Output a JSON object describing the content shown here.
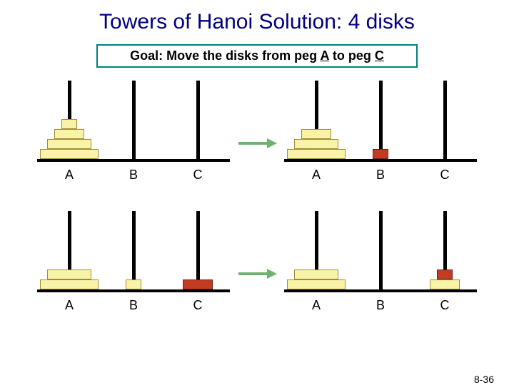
{
  "title": "Towers of Hanoi Solution: 4 disks",
  "goal_prefix": "Goal: Move the disks from peg ",
  "goal_mid": " to peg ",
  "goal_peg_a": "A",
  "goal_peg_c": "C",
  "footer": "8-36",
  "colors": {
    "title": "#000080",
    "goal_border": "#008080",
    "pole": "#000000",
    "base": "#000000",
    "disk_yellow_fill": "#f9f3a8",
    "disk_yellow_border": "#a08a3a",
    "disk_red_fill": "#c23b22",
    "disk_red_border": "#6e1f12",
    "arrow": "#6db36d"
  },
  "disk_widths": {
    "1": 22,
    "2": 42,
    "3": 62,
    "4": 82
  },
  "peg_labels": [
    "A",
    "B",
    "C"
  ],
  "rows": [
    {
      "left": {
        "A": [
          {
            "size": 1,
            "color": "yellow"
          },
          {
            "size": 2,
            "color": "yellow"
          },
          {
            "size": 3,
            "color": "yellow"
          },
          {
            "size": 4,
            "color": "yellow"
          }
        ],
        "B": [],
        "C": []
      },
      "right": {
        "A": [
          {
            "size": 2,
            "color": "yellow"
          },
          {
            "size": 3,
            "color": "yellow"
          },
          {
            "size": 4,
            "color": "yellow"
          }
        ],
        "B": [
          {
            "size": 1,
            "color": "red"
          }
        ],
        "C": []
      }
    },
    {
      "left": {
        "A": [
          {
            "size": 3,
            "color": "yellow"
          },
          {
            "size": 4,
            "color": "yellow"
          }
        ],
        "B": [
          {
            "size": 1,
            "color": "yellow"
          }
        ],
        "C": [
          {
            "size": 2,
            "color": "red"
          }
        ]
      },
      "right": {
        "A": [
          {
            "size": 3,
            "color": "yellow"
          },
          {
            "size": 4,
            "color": "yellow"
          }
        ],
        "B": [],
        "C": [
          {
            "size": 1,
            "color": "red"
          },
          {
            "size": 2,
            "color": "yellow"
          }
        ]
      }
    }
  ]
}
